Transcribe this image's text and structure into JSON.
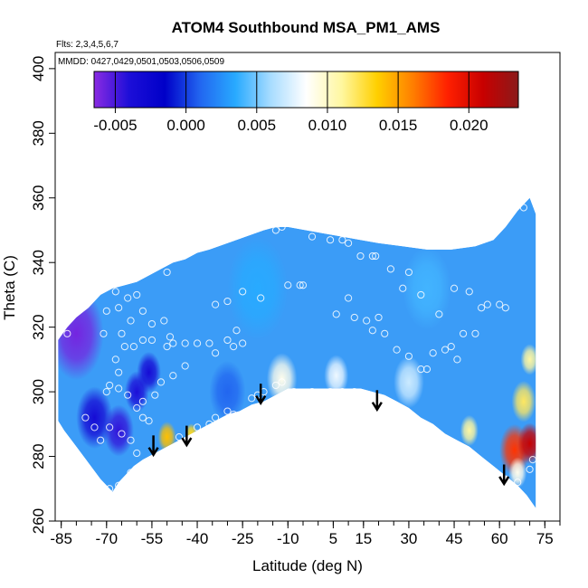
{
  "chart_data": {
    "type": "heatmap",
    "title": "ATOM4 Southbound MSA_PM1_AMS",
    "flights_note": "Flts: 2,3,4,5,6,7",
    "dates_note": "MMDD: 0427,0429,0501,0503,0506,0509",
    "xlabel": "Latitude (deg N)",
    "ylabel": "Theta (C)",
    "xlim": [
      -87,
      80
    ],
    "ylim": [
      260,
      405
    ],
    "x_ticks": [
      -85,
      -70,
      -55,
      -40,
      -25,
      -10,
      5,
      15,
      30,
      45,
      60,
      75
    ],
    "x_tick_labels": [
      "-85",
      "-70",
      "-55",
      "-40",
      "-25",
      "-10",
      "5",
      "15",
      "30",
      "45",
      "60",
      "75"
    ],
    "x_minor_step": 5,
    "y_ticks": [
      260,
      280,
      300,
      320,
      340,
      360,
      380,
      400
    ],
    "y_tick_labels": [
      "260",
      "280",
      "300",
      "320",
      "340",
      "360",
      "380",
      "400"
    ],
    "colorbar": {
      "range": [
        -0.0065,
        0.0235
      ],
      "ticks": [
        -0.005,
        0.0,
        0.005,
        0.01,
        0.015,
        0.02
      ],
      "tick_labels": [
        "-0.005",
        "0.000",
        "0.005",
        "0.010",
        "0.015",
        "0.020"
      ],
      "colors": [
        "#8a2be2",
        "#1c0ed8",
        "#0000c8",
        "#2266f0",
        "#28aaff",
        "#a8dcff",
        "#ffffff",
        "#fff7a0",
        "#ffd000",
        "#ff8000",
        "#ff2000",
        "#c80000",
        "#8b1a1a"
      ]
    },
    "envelope_top": [
      [
        -86,
        316
      ],
      [
        -83,
        320
      ],
      [
        -80,
        323
      ],
      [
        -76,
        326
      ],
      [
        -72,
        330
      ],
      [
        -68,
        332
      ],
      [
        -64,
        333
      ],
      [
        -60,
        334
      ],
      [
        -56,
        336
      ],
      [
        -52,
        338
      ],
      [
        -48,
        340
      ],
      [
        -44,
        341
      ],
      [
        -40,
        343
      ],
      [
        -36,
        344
      ],
      [
        -30,
        346
      ],
      [
        -24,
        348
      ],
      [
        -18,
        350
      ],
      [
        -14,
        351
      ],
      [
        -10,
        351
      ],
      [
        -4,
        350
      ],
      [
        2,
        349
      ],
      [
        8,
        348
      ],
      [
        14,
        347
      ],
      [
        20,
        346
      ],
      [
        28,
        345
      ],
      [
        36,
        344
      ],
      [
        44,
        344
      ],
      [
        52,
        345
      ],
      [
        58,
        347
      ],
      [
        62,
        351
      ],
      [
        66,
        356
      ],
      [
        70,
        360
      ],
      [
        72,
        355
      ]
    ],
    "envelope_bottom": [
      [
        72,
        264
      ],
      [
        69,
        268
      ],
      [
        66,
        271
      ],
      [
        62,
        274
      ],
      [
        58,
        277
      ],
      [
        54,
        280
      ],
      [
        50,
        283
      ],
      [
        46,
        285
      ],
      [
        42,
        287
      ],
      [
        38,
        290
      ],
      [
        34,
        292
      ],
      [
        30,
        295
      ],
      [
        26,
        297
      ],
      [
        22,
        299
      ],
      [
        18,
        300
      ],
      [
        14,
        301
      ],
      [
        10,
        301
      ],
      [
        6,
        301
      ],
      [
        2,
        301
      ],
      [
        -4,
        301
      ],
      [
        -10,
        301
      ],
      [
        -14,
        299
      ],
      [
        -18,
        297
      ],
      [
        -22,
        296
      ],
      [
        -26,
        294
      ],
      [
        -30,
        293
      ],
      [
        -34,
        291
      ],
      [
        -38,
        289
      ],
      [
        -42,
        287
      ],
      [
        -46,
        285
      ],
      [
        -50,
        283
      ],
      [
        -54,
        281
      ],
      [
        -58,
        279
      ],
      [
        -61,
        277
      ],
      [
        -64,
        274
      ],
      [
        -66,
        272
      ],
      [
        -68,
        269
      ],
      [
        -72,
        273
      ],
      [
        -76,
        278
      ],
      [
        -80,
        283
      ],
      [
        -84,
        288
      ],
      [
        -86,
        291
      ]
    ],
    "field_features": [
      {
        "lat": -80,
        "theta": 318,
        "value": -0.006,
        "radius": 9
      },
      {
        "lat": -74,
        "theta": 292,
        "value": -0.0035,
        "radius": 6
      },
      {
        "lat": -66,
        "theta": 288,
        "value": -0.0045,
        "radius": 5
      },
      {
        "lat": -60,
        "theta": 300,
        "value": -0.004,
        "radius": 4
      },
      {
        "lat": -56,
        "theta": 306,
        "value": -0.0035,
        "radius": 4
      },
      {
        "lat": -50,
        "theta": 286,
        "value": 0.014,
        "radius": 3
      },
      {
        "lat": -42,
        "theta": 287,
        "value": 0.013,
        "radius": 2
      },
      {
        "lat": -30,
        "theta": 300,
        "value": 0.001,
        "radius": 6
      },
      {
        "lat": -12,
        "theta": 304,
        "value": 0.009,
        "radius": 5
      },
      {
        "lat": 6,
        "theta": 305,
        "value": 0.008,
        "radius": 4
      },
      {
        "lat": 30,
        "theta": 303,
        "value": 0.007,
        "radius": 5
      },
      {
        "lat": 44,
        "theta": 281,
        "value": 0.022,
        "radius": 2
      },
      {
        "lat": 50,
        "theta": 288,
        "value": 0.011,
        "radius": 3
      },
      {
        "lat": 65,
        "theta": 282,
        "value": 0.018,
        "radius": 5
      },
      {
        "lat": 70,
        "theta": 284,
        "value": 0.021,
        "radius": 4
      },
      {
        "lat": 68,
        "theta": 297,
        "value": 0.012,
        "radius": 4
      },
      {
        "lat": 70,
        "theta": 310,
        "value": 0.011,
        "radius": 3
      },
      {
        "lat": 66,
        "theta": 275,
        "value": 0.009,
        "radius": 3
      },
      {
        "lat": 36,
        "theta": 332,
        "value": 0.004,
        "radius": 8
      },
      {
        "lat": -20,
        "theta": 332,
        "value": 0.0035,
        "radius": 10
      }
    ],
    "sample_points": [
      [
        -83,
        318
      ],
      [
        -77,
        292
      ],
      [
        -74,
        289
      ],
      [
        -72,
        285
      ],
      [
        -69,
        289
      ],
      [
        -69,
        270
      ],
      [
        -66,
        271
      ],
      [
        -65,
        287
      ],
      [
        -62,
        285
      ],
      [
        -62,
        275
      ],
      [
        -60,
        281
      ],
      [
        -58,
        276
      ],
      [
        -69,
        302
      ],
      [
        -70,
        300
      ],
      [
        -66,
        301
      ],
      [
        -63,
        299
      ],
      [
        -60,
        295
      ],
      [
        -58,
        297
      ],
      [
        -54,
        299
      ],
      [
        -58,
        292
      ],
      [
        -66,
        306
      ],
      [
        -67,
        310
      ],
      [
        -64,
        314
      ],
      [
        -61,
        314
      ],
      [
        -58,
        316
      ],
      [
        -55,
        316
      ],
      [
        -66,
        326
      ],
      [
        -63,
        329
      ],
      [
        -60,
        330
      ],
      [
        -58,
        325
      ],
      [
        -55,
        321
      ],
      [
        -51,
        322
      ],
      [
        -67,
        331
      ],
      [
        -70,
        325
      ],
      [
        -71,
        318
      ],
      [
        -65,
        318
      ],
      [
        -62,
        322
      ],
      [
        -49,
        317
      ],
      [
        -48,
        315
      ],
      [
        -44,
        315
      ],
      [
        -40,
        315
      ],
      [
        -36,
        315
      ],
      [
        -34,
        312
      ],
      [
        -30,
        316
      ],
      [
        -28,
        314
      ],
      [
        -25,
        315
      ],
      [
        -27,
        319
      ],
      [
        -34,
        327
      ],
      [
        -30,
        328
      ],
      [
        -25,
        331
      ],
      [
        -19,
        329
      ],
      [
        -50,
        337
      ],
      [
        -50,
        314
      ],
      [
        -52,
        303
      ],
      [
        -56,
        291
      ],
      [
        -48,
        305
      ],
      [
        -44,
        308
      ],
      [
        -46,
        286
      ],
      [
        -36,
        290
      ],
      [
        -28,
        293
      ],
      [
        -20,
        299
      ],
      [
        -12,
        303
      ],
      [
        -14,
        350
      ],
      [
        -12,
        351
      ],
      [
        -10,
        333
      ],
      [
        -5,
        333
      ],
      [
        -2,
        348
      ],
      [
        4,
        347
      ],
      [
        8,
        347
      ],
      [
        10,
        346
      ],
      [
        14,
        342
      ],
      [
        18,
        342
      ],
      [
        19,
        342
      ],
      [
        24,
        338
      ],
      [
        28,
        332
      ],
      [
        30,
        337
      ],
      [
        34,
        330
      ],
      [
        10,
        329
      ],
      [
        6,
        324
      ],
      [
        12,
        323
      ],
      [
        16,
        322
      ],
      [
        18,
        319
      ],
      [
        20,
        323
      ],
      [
        22,
        318
      ],
      [
        26,
        313
      ],
      [
        30,
        311
      ],
      [
        34,
        307
      ],
      [
        36,
        307
      ],
      [
        38,
        312
      ],
      [
        42,
        313
      ],
      [
        44,
        314
      ],
      [
        46,
        310
      ],
      [
        52,
        318
      ],
      [
        54,
        326
      ],
      [
        56,
        327
      ],
      [
        60,
        327
      ],
      [
        62,
        326
      ],
      [
        50,
        331
      ],
      [
        48,
        318
      ],
      [
        45,
        332
      ],
      [
        40,
        324
      ],
      [
        -6,
        333
      ],
      [
        -2,
        300
      ],
      [
        4,
        300
      ],
      [
        8,
        300
      ],
      [
        12,
        300
      ],
      [
        16,
        297
      ],
      [
        20,
        297
      ],
      [
        26,
        294
      ],
      [
        30,
        291
      ],
      [
        34,
        288
      ],
      [
        38,
        286
      ],
      [
        42,
        283
      ],
      [
        46,
        281
      ],
      [
        50,
        279
      ],
      [
        54,
        277
      ],
      [
        58,
        275
      ],
      [
        62,
        273
      ],
      [
        66,
        272
      ],
      [
        70,
        276
      ],
      [
        71,
        279
      ],
      [
        68,
        357
      ],
      [
        -8,
        300
      ],
      [
        -14,
        302
      ],
      [
        -18,
        300
      ],
      [
        -22,
        298
      ],
      [
        -30,
        294
      ],
      [
        -34,
        292
      ],
      [
        -40,
        289
      ]
    ],
    "arrows": [
      {
        "lat": -54.5,
        "theta_top": 286.5,
        "theta_tip": 280.5
      },
      {
        "lat": -43.5,
        "theta_top": 289.5,
        "theta_tip": 283.5
      },
      {
        "lat": -19,
        "theta_top": 302.5,
        "theta_tip": 296.5
      },
      {
        "lat": 19.5,
        "theta_top": 300.5,
        "theta_tip": 294.5
      },
      {
        "lat": 61.5,
        "theta_top": 277.5,
        "theta_tip": 271.5
      }
    ]
  }
}
